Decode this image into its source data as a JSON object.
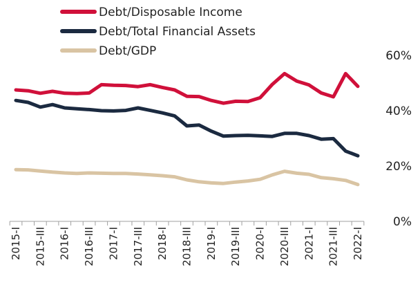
{
  "chart_data": {
    "type": "line",
    "title": "",
    "xlabel": "",
    "ylabel": "",
    "ylim": [
      0,
      60
    ],
    "y_ticks": [
      "0%",
      "20%",
      "40%",
      "60%"
    ],
    "y_tick_values": [
      0,
      20,
      40,
      60
    ],
    "y_axis_position": "right",
    "grid": false,
    "legend_position": "top-left",
    "categories": [
      "2015-I",
      "2015-II",
      "2015-III",
      "2015-IV",
      "2016-I",
      "2016-II",
      "2016-III",
      "2016-IV",
      "2017-I",
      "2017-II",
      "2017-III",
      "2017-IV",
      "2018-I",
      "2018-II",
      "2018-III",
      "2018-IV",
      "2019-I",
      "2019-II",
      "2019-III",
      "2019-IV",
      "2020-I",
      "2020-II",
      "2020-III",
      "2020-IV",
      "2021-I",
      "2021-II",
      "2021-III",
      "2021-IV",
      "2022-I"
    ],
    "x_tick_labels": [
      "2015-I",
      "2015-III",
      "2016-I",
      "2016-III",
      "2017-I",
      "2017-III",
      "2018-I",
      "2018-III",
      "2019-I",
      "2019-III",
      "2020-I",
      "2020-III",
      "2021-I",
      "2021-III",
      "2022-I"
    ],
    "series": [
      {
        "name": "Debt/Disposable Income",
        "color": "#d0103a",
        "values": [
          47.5,
          47.2,
          46.3,
          47.0,
          46.3,
          46.2,
          46.4,
          49.4,
          49.2,
          49.1,
          48.7,
          49.4,
          48.4,
          47.5,
          45.2,
          45.1,
          43.7,
          42.7,
          43.4,
          43.3,
          44.7,
          49.5,
          53.4,
          50.7,
          49.3,
          46.4,
          45.0,
          53.4,
          48.8
        ]
      },
      {
        "name": "Debt/Total Financial Assets",
        "color": "#1b2a40",
        "values": [
          43.7,
          43.0,
          41.3,
          42.2,
          41.0,
          40.7,
          40.4,
          40.0,
          39.9,
          40.1,
          41.0,
          40.1,
          39.2,
          38.1,
          34.5,
          34.8,
          32.6,
          30.8,
          31.0,
          31.1,
          30.9,
          30.7,
          31.8,
          31.8,
          31.0,
          29.7,
          29.9,
          25.4,
          23.7
        ]
      },
      {
        "name": "Debt/GDP",
        "color": "#d9c4a3",
        "values": [
          18.7,
          18.6,
          18.2,
          17.8,
          17.5,
          17.3,
          17.5,
          17.4,
          17.3,
          17.3,
          17.1,
          16.8,
          16.5,
          16.1,
          15.0,
          14.3,
          13.9,
          13.7,
          14.2,
          14.6,
          15.2,
          16.8,
          18.1,
          17.4,
          17.0,
          15.8,
          15.4,
          14.8,
          13.3
        ]
      }
    ]
  }
}
